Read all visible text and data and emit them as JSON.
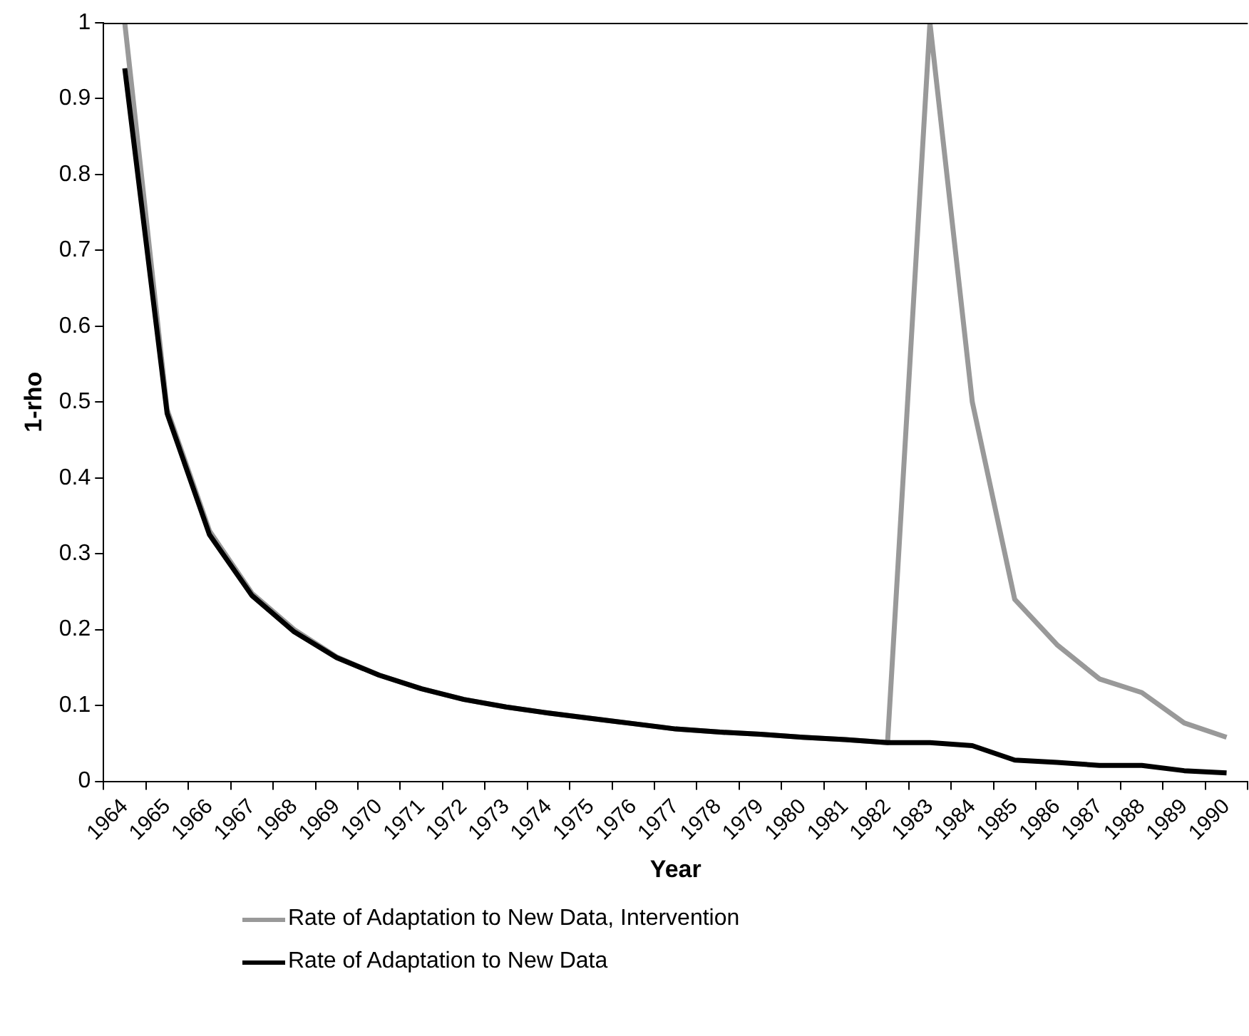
{
  "chart_data": {
    "type": "line",
    "xlabel": "Year",
    "ylabel": "1-rho",
    "categories": [
      "1964",
      "1965",
      "1966",
      "1967",
      "1968",
      "1969",
      "1970",
      "1971",
      "1972",
      "1973",
      "1974",
      "1975",
      "1976",
      "1977",
      "1978",
      "1979",
      "1980",
      "1981",
      "1982",
      "1983",
      "1984",
      "1985",
      "1986",
      "1987",
      "1988",
      "1989",
      "1990"
    ],
    "series": [
      {
        "name": "Rate of Adaptation to New Data, Intervention",
        "color": "#999999",
        "values": [
          1,
          0.49,
          0.33,
          0.248,
          0.2,
          0.164,
          0.14,
          0.122,
          0.108,
          0.098,
          0.09,
          0.083,
          0.076,
          0.069,
          0.065,
          0.062,
          0.058,
          0.055,
          0.051,
          1,
          0.5,
          0.24,
          0.18,
          0.135,
          0.117,
          0.077,
          0.058
        ]
      },
      {
        "name": "Rate of Adaptation to New Data",
        "color": "#000000",
        "values": [
          0.94,
          0.485,
          0.325,
          0.245,
          0.197,
          0.163,
          0.14,
          0.122,
          0.108,
          0.098,
          0.09,
          0.083,
          0.076,
          0.069,
          0.065,
          0.062,
          0.058,
          0.055,
          0.051,
          0.051,
          0.047,
          0.028,
          0.025,
          0.021,
          0.021,
          0.014,
          0.011
        ]
      }
    ],
    "ylim": [
      0,
      1
    ],
    "yticks": [
      0,
      0.1,
      0.2,
      0.3,
      0.4,
      0.5,
      0.6,
      0.7,
      0.8,
      0.9,
      1
    ],
    "grid": false,
    "legend": "bottom",
    "marker": "none",
    "line_style": "solid"
  }
}
